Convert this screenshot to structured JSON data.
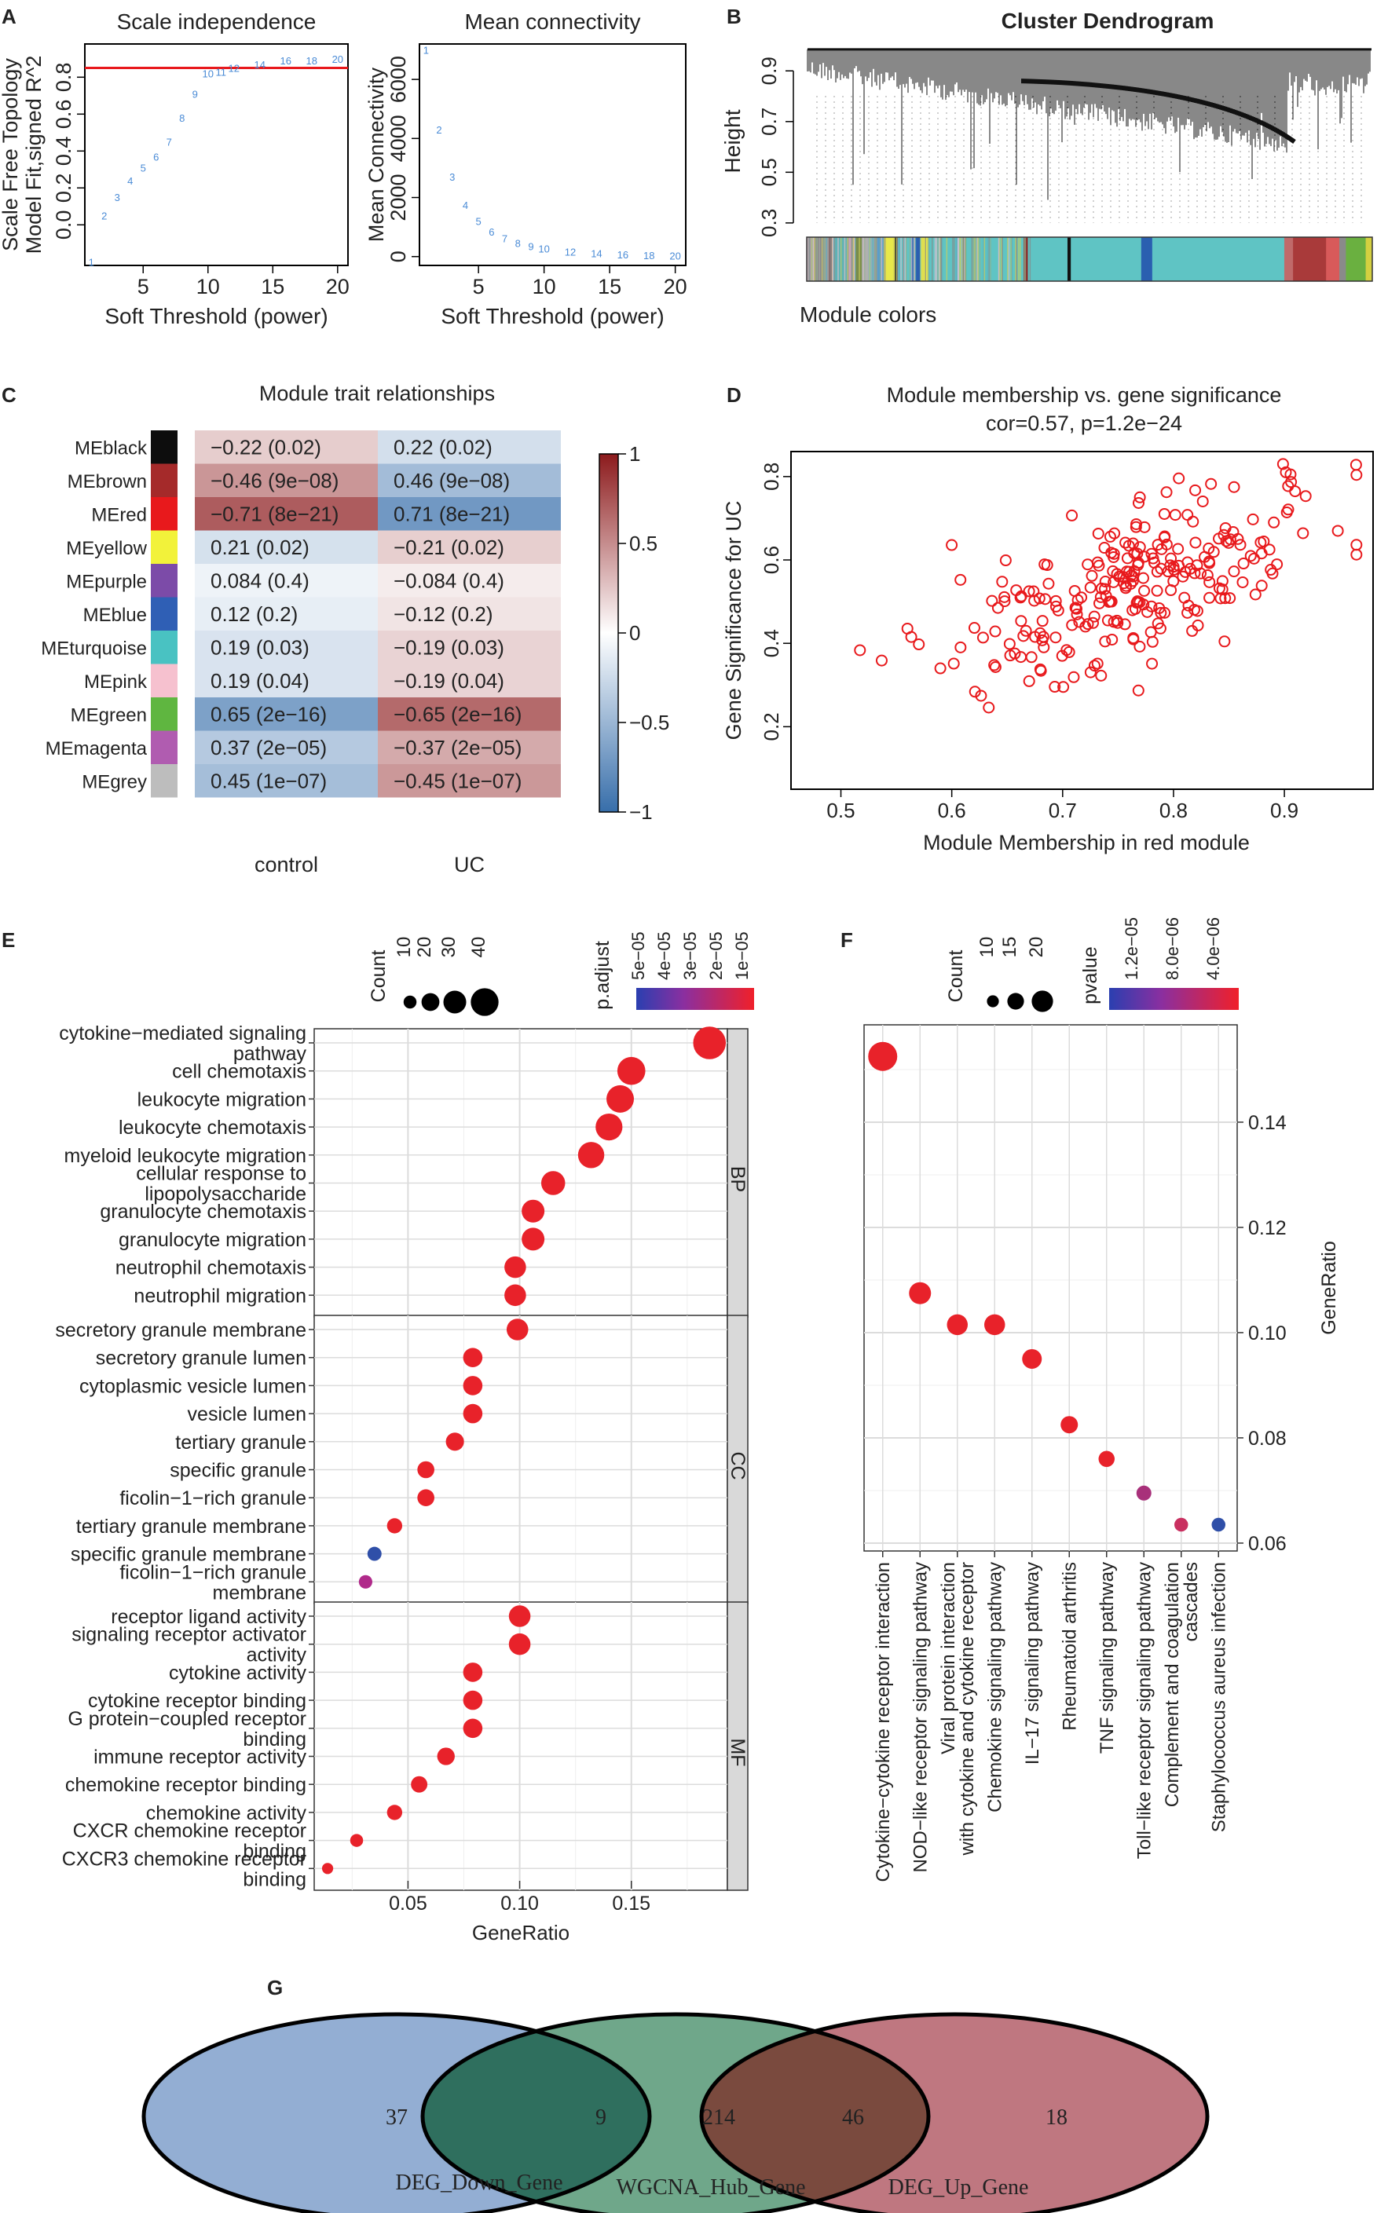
{
  "figure": {
    "panel_letters": [
      "A",
      "B",
      "C",
      "D",
      "E",
      "F",
      "G"
    ]
  },
  "chart_data": [
    {
      "id": "A1",
      "type": "scatter",
      "title": "Scale independence",
      "xlabel": "Soft Threshold (power)",
      "ylabel_line1": "Scale Free Topology",
      "ylabel_line2": "Model Fit,signed R^2",
      "xlim": [
        0.5,
        20.8
      ],
      "ylim": [
        -0.22,
        0.98
      ],
      "xticks": [
        5,
        10,
        15,
        20
      ],
      "yticks": [
        0.0,
        0.2,
        0.4,
        0.6,
        0.8
      ],
      "threshold": 0.85,
      "threshold_color": "#e8191c",
      "point_color": "#4a8bd6",
      "points": [
        {
          "x": 1,
          "y": -0.2
        },
        {
          "x": 2,
          "y": 0.05
        },
        {
          "x": 3,
          "y": 0.15
        },
        {
          "x": 4,
          "y": 0.24
        },
        {
          "x": 5,
          "y": 0.31
        },
        {
          "x": 6,
          "y": 0.37
        },
        {
          "x": 7,
          "y": 0.45
        },
        {
          "x": 8,
          "y": 0.58
        },
        {
          "x": 9,
          "y": 0.71
        },
        {
          "x": 10,
          "y": 0.82
        },
        {
          "x": 11,
          "y": 0.83
        },
        {
          "x": 12,
          "y": 0.85
        },
        {
          "x": 14,
          "y": 0.87
        },
        {
          "x": 16,
          "y": 0.89
        },
        {
          "x": 18,
          "y": 0.89
        },
        {
          "x": 20,
          "y": 0.9
        }
      ]
    },
    {
      "id": "A2",
      "type": "scatter",
      "title": "Mean connectivity",
      "xlabel": "Soft Threshold (power)",
      "ylabel": "Mean Connectivity",
      "xlim": [
        0.5,
        20.8
      ],
      "ylim": [
        -300,
        7200
      ],
      "xticks": [
        5,
        10,
        15,
        20
      ],
      "yticks": [
        0,
        2000,
        4000,
        6000
      ],
      "point_color": "#4a8bd6",
      "points": [
        {
          "x": 1,
          "y": 7000
        },
        {
          "x": 2,
          "y": 4300
        },
        {
          "x": 3,
          "y": 2700
        },
        {
          "x": 4,
          "y": 1750
        },
        {
          "x": 5,
          "y": 1200
        },
        {
          "x": 6,
          "y": 850
        },
        {
          "x": 7,
          "y": 620
        },
        {
          "x": 8,
          "y": 460
        },
        {
          "x": 9,
          "y": 350
        },
        {
          "x": 10,
          "y": 270
        },
        {
          "x": 12,
          "y": 170
        },
        {
          "x": 14,
          "y": 110
        },
        {
          "x": 16,
          "y": 75
        },
        {
          "x": 18,
          "y": 50
        },
        {
          "x": 20,
          "y": 35
        }
      ]
    },
    {
      "id": "B",
      "type": "dendrogram",
      "title": "Cluster Dendrogram",
      "ylabel": "Height",
      "yticks": [
        0.3,
        0.5,
        0.7,
        0.9
      ],
      "ylim": [
        0.25,
        1.0
      ],
      "colorbar_label": "Module colors",
      "module_color_segments": [
        {
          "color": "#9e9e9e",
          "w": 20
        },
        {
          "color": "#8a6f6f",
          "w": 6
        },
        {
          "color": "#5fb3b3",
          "w": 10
        },
        {
          "color": "#c9a0b8",
          "w": 8
        },
        {
          "color": "#7a8c4a",
          "w": 6
        },
        {
          "color": "#b0b0b0",
          "w": 14
        },
        {
          "color": "#5a9ec9",
          "w": 6
        },
        {
          "color": "#e8e84a",
          "w": 10
        },
        {
          "color": "#333333",
          "w": 3
        },
        {
          "color": "#5fc4c4",
          "w": 12
        },
        {
          "color": "#2a5fb0",
          "w": 8
        },
        {
          "color": "#e8e84a",
          "w": 8
        },
        {
          "color": "#5fc4c4",
          "w": 30
        },
        {
          "color": "#7fa870",
          "w": 4
        },
        {
          "color": "#5fc4c4",
          "w": 52
        },
        {
          "color": "#8a3030",
          "w": 4
        },
        {
          "color": "#5fc4c4",
          "w": 36
        },
        {
          "color": "#111111",
          "w": 3
        },
        {
          "color": "#5fc4c4",
          "w": 64
        },
        {
          "color": "#2a5fb0",
          "w": 10
        },
        {
          "color": "#5fc4c4",
          "w": 120
        },
        {
          "color": "#c06a6a",
          "w": 8
        },
        {
          "color": "#a93a3a",
          "w": 30
        },
        {
          "color": "#d85a5a",
          "w": 12
        },
        {
          "color": "#8a8a8a",
          "w": 6
        },
        {
          "color": "#6ab040",
          "w": 18
        },
        {
          "color": "#d4d040",
          "w": 6
        }
      ]
    },
    {
      "id": "C",
      "type": "heatmap",
      "title": "Module trait relationships",
      "rows": [
        {
          "module": "MEblack",
          "swatch": "#0d0d0d",
          "control": "−0.22 (0.02)",
          "uc": "0.22 (0.02)",
          "r": -0.22
        },
        {
          "module": "MEbrown",
          "swatch": "#a52a2a",
          "control": "−0.46 (9e−08)",
          "uc": "0.46 (9e−08)",
          "r": -0.46
        },
        {
          "module": "MEred",
          "swatch": "#e8191c",
          "control": "−0.71 (8e−21)",
          "uc": "0.71 (8e−21)",
          "r": -0.71
        },
        {
          "module": "MEyellow",
          "swatch": "#f2f23a",
          "control": "0.21 (0.02)",
          "uc": "−0.21 (0.02)",
          "r": 0.21
        },
        {
          "module": "MEpurple",
          "swatch": "#7c4ba8",
          "control": "0.084 (0.4)",
          "uc": "−0.084 (0.4)",
          "r": 0.084
        },
        {
          "module": "MEblue",
          "swatch": "#2f5fb5",
          "control": "0.12 (0.2)",
          "uc": "−0.12 (0.2)",
          "r": 0.12
        },
        {
          "module": "MEturquoise",
          "swatch": "#49c2c2",
          "control": "0.19 (0.03)",
          "uc": "−0.19 (0.03)",
          "r": 0.19
        },
        {
          "module": "MEpink",
          "swatch": "#f6c1cf",
          "control": "0.19 (0.04)",
          "uc": "−0.19 (0.04)",
          "r": 0.19
        },
        {
          "module": "MEgreen",
          "swatch": "#5fb640",
          "control": "0.65 (2e−16)",
          "uc": "−0.65 (2e−16)",
          "r": 0.65
        },
        {
          "module": "MEmagenta",
          "swatch": "#b05cb0",
          "control": "0.37 (2e−05)",
          "uc": "−0.37 (2e−05)",
          "r": 0.37
        },
        {
          "module": "MEgrey",
          "swatch": "#bdbdbd",
          "control": "0.45 (1e−07)",
          "uc": "−0.45 (1e−07)",
          "r": 0.45
        }
      ],
      "columns": [
        "control",
        "UC"
      ],
      "colorbar_ticks": [
        "1",
        "0.5",
        "0",
        "−0.5",
        "−1"
      ],
      "colorbar_range": [
        -1,
        1
      ]
    },
    {
      "id": "D",
      "type": "scatter",
      "title": "Module membership vs. gene significance",
      "subtitle": "cor=0.57, p=1.2e−24",
      "xlabel": "Module Membership in red module",
      "ylabel": "Gene Significance for UC",
      "xlim": [
        0.455,
        0.98
      ],
      "ylim": [
        0.05,
        0.86
      ],
      "xticks": [
        "0.5",
        "0.6",
        "0.7",
        "0.8",
        "0.9"
      ],
      "yticks": [
        "0.2",
        "0.4",
        "0.6",
        "0.8"
      ],
      "n_points": 260,
      "correlation": 0.57,
      "point_color": "#e8191c"
    },
    {
      "id": "E",
      "type": "scatter",
      "subtype": "dotplot",
      "xlabel": "GeneRatio",
      "xlim": [
        0.008,
        0.193
      ],
      "xticks": [
        0.05,
        0.1,
        0.15
      ],
      "xtick_labels": [
        "0.05",
        "0.10",
        "0.15"
      ],
      "legend_count_title": "Count",
      "legend_count_values": [
        "10",
        "20",
        "30",
        "40"
      ],
      "legend_color_title": "p.adjust",
      "legend_color_ticks": [
        "5e−05",
        "4e−05",
        "3e−05",
        "2e−05",
        "1e−05"
      ],
      "facets": [
        {
          "label": "BP",
          "terms": [
            {
              "line1": "cytokine−mediated signaling",
              "line2": "pathway",
              "x": 0.185,
              "count": 40,
              "color": "#e8222a"
            },
            {
              "line1": "cell chemotaxis",
              "line2": "",
              "x": 0.15,
              "count": 32,
              "color": "#e8222a"
            },
            {
              "line1": "leukocyte migration",
              "line2": "",
              "x": 0.145,
              "count": 31,
              "color": "#e8222a"
            },
            {
              "line1": "leukocyte chemotaxis",
              "line2": "",
              "x": 0.14,
              "count": 30,
              "color": "#e8222a"
            },
            {
              "line1": "myeloid leukocyte migration",
              "line2": "",
              "x": 0.132,
              "count": 29,
              "color": "#e8222a"
            },
            {
              "line1": "cellular response to",
              "line2": "lipopolysaccharide",
              "x": 0.115,
              "count": 25,
              "color": "#e8222a"
            },
            {
              "line1": "granulocyte chemotaxis",
              "line2": "",
              "x": 0.106,
              "count": 23,
              "color": "#e8222a"
            },
            {
              "line1": "granulocyte migration",
              "line2": "",
              "x": 0.106,
              "count": 23,
              "color": "#e8222a"
            },
            {
              "line1": "neutrophil chemotaxis",
              "line2": "",
              "x": 0.098,
              "count": 21,
              "color": "#e8222a"
            },
            {
              "line1": "neutrophil migration",
              "line2": "",
              "x": 0.098,
              "count": 21,
              "color": "#e8222a"
            }
          ]
        },
        {
          "label": "CC",
          "terms": [
            {
              "line1": "secretory granule membrane",
              "line2": "",
              "x": 0.099,
              "count": 21,
              "color": "#e8222a"
            },
            {
              "line1": "secretory granule lumen",
              "line2": "",
              "x": 0.079,
              "count": 17,
              "color": "#e8222a"
            },
            {
              "line1": "cytoplasmic vesicle lumen",
              "line2": "",
              "x": 0.079,
              "count": 17,
              "color": "#e8222a"
            },
            {
              "line1": "vesicle lumen",
              "line2": "",
              "x": 0.079,
              "count": 17,
              "color": "#e8222a"
            },
            {
              "line1": "tertiary granule",
              "line2": "",
              "x": 0.071,
              "count": 15,
              "color": "#e8222a"
            },
            {
              "line1": "specific granule",
              "line2": "",
              "x": 0.058,
              "count": 13,
              "color": "#e8222a"
            },
            {
              "line1": "ficolin−1−rich granule",
              "line2": "",
              "x": 0.058,
              "count": 13,
              "color": "#e8222a"
            },
            {
              "line1": "tertiary granule membrane",
              "line2": "",
              "x": 0.044,
              "count": 10,
              "color": "#e8222a"
            },
            {
              "line1": "specific granule membrane",
              "line2": "",
              "x": 0.035,
              "count": 8,
              "color": "#2f4fa8"
            },
            {
              "line1": "ficolin−1−rich granule",
              "line2": "membrane",
              "x": 0.031,
              "count": 7,
              "color": "#b02a8a"
            }
          ]
        },
        {
          "label": "MF",
          "terms": [
            {
              "line1": "receptor ligand activity",
              "line2": "",
              "x": 0.1,
              "count": 21,
              "color": "#e8222a"
            },
            {
              "line1": "signaling receptor activator",
              "line2": "activity",
              "x": 0.1,
              "count": 21,
              "color": "#e8222a"
            },
            {
              "line1": "cytokine activity",
              "line2": "",
              "x": 0.079,
              "count": 17,
              "color": "#e8222a"
            },
            {
              "line1": "cytokine receptor binding",
              "line2": "",
              "x": 0.079,
              "count": 17,
              "color": "#e8222a"
            },
            {
              "line1": "G protein−coupled receptor",
              "line2": "binding",
              "x": 0.079,
              "count": 17,
              "color": "#e8222a"
            },
            {
              "line1": "immune receptor activity",
              "line2": "",
              "x": 0.067,
              "count": 14,
              "color": "#e8222a"
            },
            {
              "line1": "chemokine receptor binding",
              "line2": "",
              "x": 0.055,
              "count": 12,
              "color": "#e8222a"
            },
            {
              "line1": "chemokine activity",
              "line2": "",
              "x": 0.044,
              "count": 10,
              "color": "#e8222a"
            },
            {
              "line1": "CXCR chemokine receptor",
              "line2": "binding",
              "x": 0.027,
              "count": 6,
              "color": "#e8222a"
            },
            {
              "line1": "CXCR3 chemokine receptor",
              "line2": "binding",
              "x": 0.014,
              "count": 3,
              "color": "#e8222a"
            }
          ]
        }
      ]
    },
    {
      "id": "F",
      "type": "scatter",
      "subtype": "dotplot",
      "ylabel": "GeneRatio",
      "ylim": [
        0.0585,
        0.1585
      ],
      "yticks": [
        0.06,
        0.08,
        0.1,
        0.12,
        0.14
      ],
      "ytick_labels": [
        "0.06",
        "0.08",
        "0.10",
        "0.12",
        "0.14"
      ],
      "legend_count_title": "Count",
      "legend_count_values": [
        "10",
        "15",
        "20"
      ],
      "legend_color_title": "pvalue",
      "legend_color_ticks": [
        "1.2e−05",
        "8.0e−06",
        "4.0e−06"
      ],
      "pathways": [
        {
          "line1": "Cytokine−cytokine receptor interaction",
          "line2": "",
          "y": 0.1525,
          "count": 22,
          "color": "#e8222a"
        },
        {
          "line1": "NOD−like receptor signaling pathway",
          "line2": "",
          "y": 0.1075,
          "count": 16,
          "color": "#e8222a"
        },
        {
          "line1": "Viral protein interaction",
          "line2": "with cytokine and cytokine receptor",
          "y": 0.1015,
          "count": 15,
          "color": "#e8222a"
        },
        {
          "line1": "Chemokine signaling pathway",
          "line2": "",
          "y": 0.1015,
          "count": 15,
          "color": "#e8222a"
        },
        {
          "line1": "IL−17 signaling pathway",
          "line2": "",
          "y": 0.095,
          "count": 14,
          "color": "#e8222a"
        },
        {
          "line1": "Rheumatoid arthritis",
          "line2": "",
          "y": 0.0825,
          "count": 12,
          "color": "#e8222a"
        },
        {
          "line1": "TNF signaling pathway",
          "line2": "",
          "y": 0.076,
          "count": 11,
          "color": "#e8222a"
        },
        {
          "line1": "Toll−like receptor signaling pathway",
          "line2": "",
          "y": 0.0695,
          "count": 10,
          "color": "#a8307a"
        },
        {
          "line1": "Complement and coagulation",
          "line2": "cascades",
          "y": 0.0635,
          "count": 9,
          "color": "#c93060"
        },
        {
          "line1": "Staphylococcus aureus infection",
          "line2": "",
          "y": 0.0635,
          "count": 9,
          "color": "#2f4fa8"
        }
      ]
    },
    {
      "id": "G",
      "type": "venn",
      "sets": [
        {
          "label": "DEG_Down_Gene",
          "color": "#6f93c4"
        },
        {
          "label": "WGCNA_Hub_Gene",
          "color": "#3f8a63"
        },
        {
          "label": "DEG_Up_Gene",
          "color": "#a94a55"
        }
      ],
      "regions": [
        {
          "sets": "DEG_Down_Gene only",
          "value": "37"
        },
        {
          "sets": "DEG_Down_Gene & WGCNA_Hub_Gene",
          "value": "9"
        },
        {
          "sets": "WGCNA_Hub_Gene only",
          "value": "214"
        },
        {
          "sets": "WGCNA_Hub_Gene & DEG_Up_Gene",
          "value": "46"
        },
        {
          "sets": "DEG_Up_Gene only",
          "value": "18"
        }
      ]
    }
  ]
}
